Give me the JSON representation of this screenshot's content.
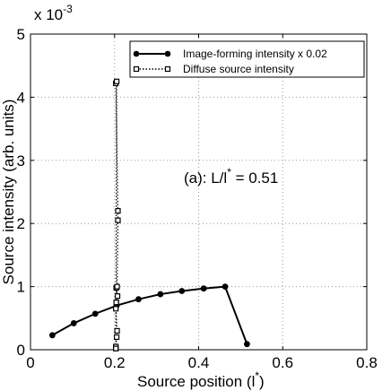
{
  "chart_data": {
    "type": "line",
    "xlabel": "Source position (l",
    "xlabel_sup": "*",
    "xlabel_end": ")",
    "ylabel": "Source intensity (arb. units)",
    "y_multiplier": {
      "base": "x 10",
      "exp": "-3"
    },
    "annotation": {
      "text": "(a): L/l",
      "sup": "*",
      "tail": " = 0.51"
    },
    "xlim": [
      0,
      0.8
    ],
    "ylim": [
      0,
      5
    ],
    "xticks": [
      0,
      0.2,
      0.4,
      0.6,
      0.8
    ],
    "xtick_labels": [
      "0",
      "0.2",
      "0.4",
      "0.6",
      "0.8"
    ],
    "yticks": [
      0,
      1,
      2,
      3,
      4,
      5
    ],
    "ytick_labels": [
      "0",
      "1",
      "2",
      "3",
      "4",
      "5"
    ],
    "grid": true,
    "legend_position": "top-right",
    "series": [
      {
        "name": "Image-forming intensity x 0.02",
        "style": "solid-line-filled-circle",
        "color": "#000000",
        "x": [
          0.052,
          0.103,
          0.154,
          0.205,
          0.257,
          0.309,
          0.36,
          0.412,
          0.463,
          0.515
        ],
        "y": [
          0.23,
          0.42,
          0.57,
          0.7,
          0.8,
          0.88,
          0.93,
          0.97,
          1.0,
          0.09
        ]
      },
      {
        "name": "Diffuse source intensity",
        "style": "dotted-line-open-square",
        "color": "#000000",
        "x": [
          0.203,
          0.203,
          0.205,
          0.206,
          0.203,
          0.204,
          0.207,
          0.204,
          0.204,
          0.206,
          0.208,
          0.208,
          0.203,
          0.205,
          0.203
        ],
        "y": [
          0.02,
          0.05,
          0.2,
          0.3,
          0.65,
          0.75,
          0.85,
          0.98,
          0.75,
          1.0,
          2.05,
          2.2,
          4.22,
          4.25,
          0.02
        ]
      }
    ]
  }
}
